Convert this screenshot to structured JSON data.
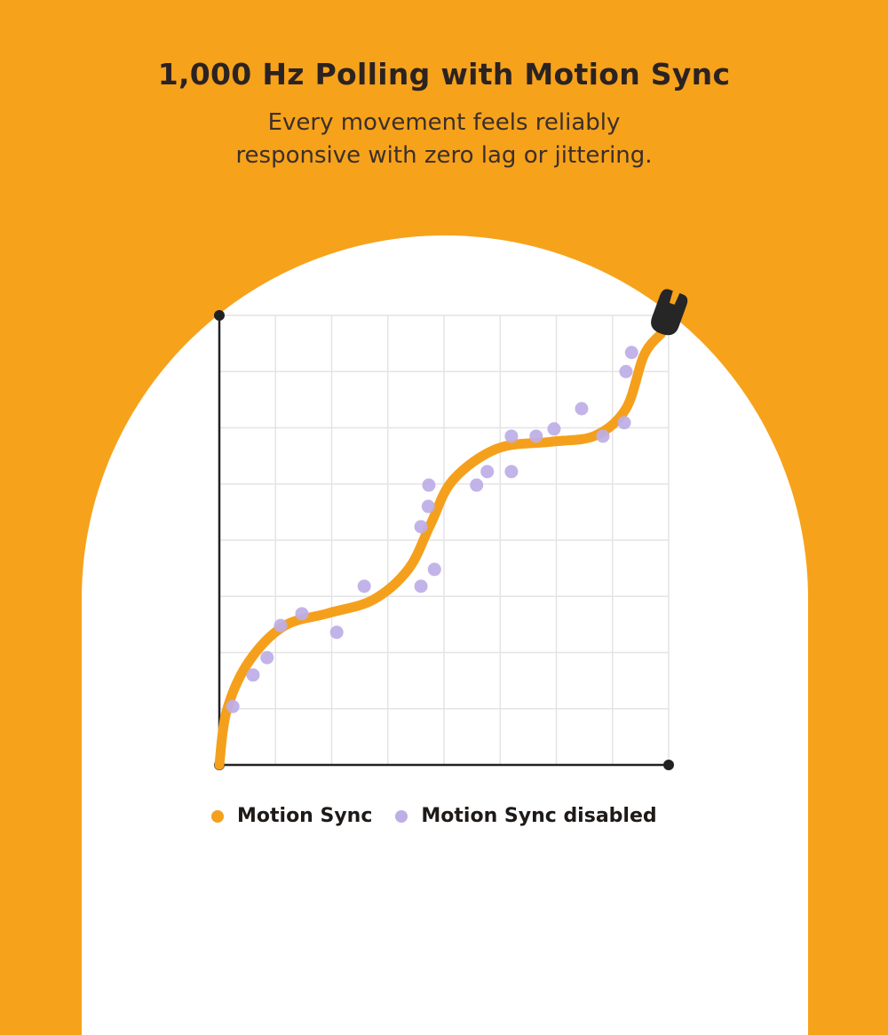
{
  "header": {
    "title": "1,000 Hz Polling with Motion Sync",
    "subtitle_lines": [
      "Every movement feels reliably",
      "responsive with zero lag or jittering."
    ]
  },
  "colors": {
    "background": "#F7A21B",
    "curve": "#F5A01C",
    "dots": "#BDAEE6",
    "axis": "#222222",
    "grid": "#E4E4E4",
    "mouse": "#262626"
  },
  "chart_data": {
    "type": "line",
    "title": "1,000 Hz Polling with Motion Sync",
    "xlabel": "",
    "ylabel": "",
    "xlim": [
      0,
      8
    ],
    "ylim": [
      0,
      8
    ],
    "grid": true,
    "legend_placement": "bottom",
    "end_marker_icon": "mouse-icon",
    "series": [
      {
        "name": "Motion Sync",
        "type": "line",
        "color": "#F5A01C",
        "x": [
          0,
          0.13,
          0.52,
          1.15,
          1.94,
          2.74,
          3.37,
          3.76,
          4.16,
          4.95,
          5.9,
          6.69,
          7.24,
          7.56,
          7.87
        ],
        "y": [
          0,
          0.96,
          1.83,
          2.47,
          2.7,
          2.94,
          3.49,
          4.28,
          5.07,
          5.63,
          5.75,
          5.86,
          6.34,
          7.29,
          7.68
        ]
      },
      {
        "name": "Motion Sync disabled",
        "type": "scatter",
        "color": "#BDAEE6",
        "x": [
          0.24,
          0.6,
          0.85,
          1.09,
          1.47,
          2.09,
          2.58,
          3.59,
          3.83,
          3.59,
          3.72,
          3.73,
          4.58,
          4.77,
          5.2,
          5.2,
          5.64,
          5.96,
          6.45,
          6.83,
          7.21,
          7.24,
          7.34
        ],
        "y": [
          1.04,
          1.6,
          1.91,
          2.48,
          2.69,
          2.36,
          3.18,
          3.18,
          3.48,
          4.24,
          4.6,
          4.98,
          4.98,
          5.22,
          5.22,
          5.85,
          5.85,
          5.98,
          6.34,
          5.85,
          6.09,
          7.0,
          7.34
        ]
      }
    ]
  },
  "legend": [
    {
      "label": "Motion Sync",
      "color": "#F5A01C"
    },
    {
      "label": "Motion Sync disabled",
      "color": "#BDAEE6"
    }
  ]
}
